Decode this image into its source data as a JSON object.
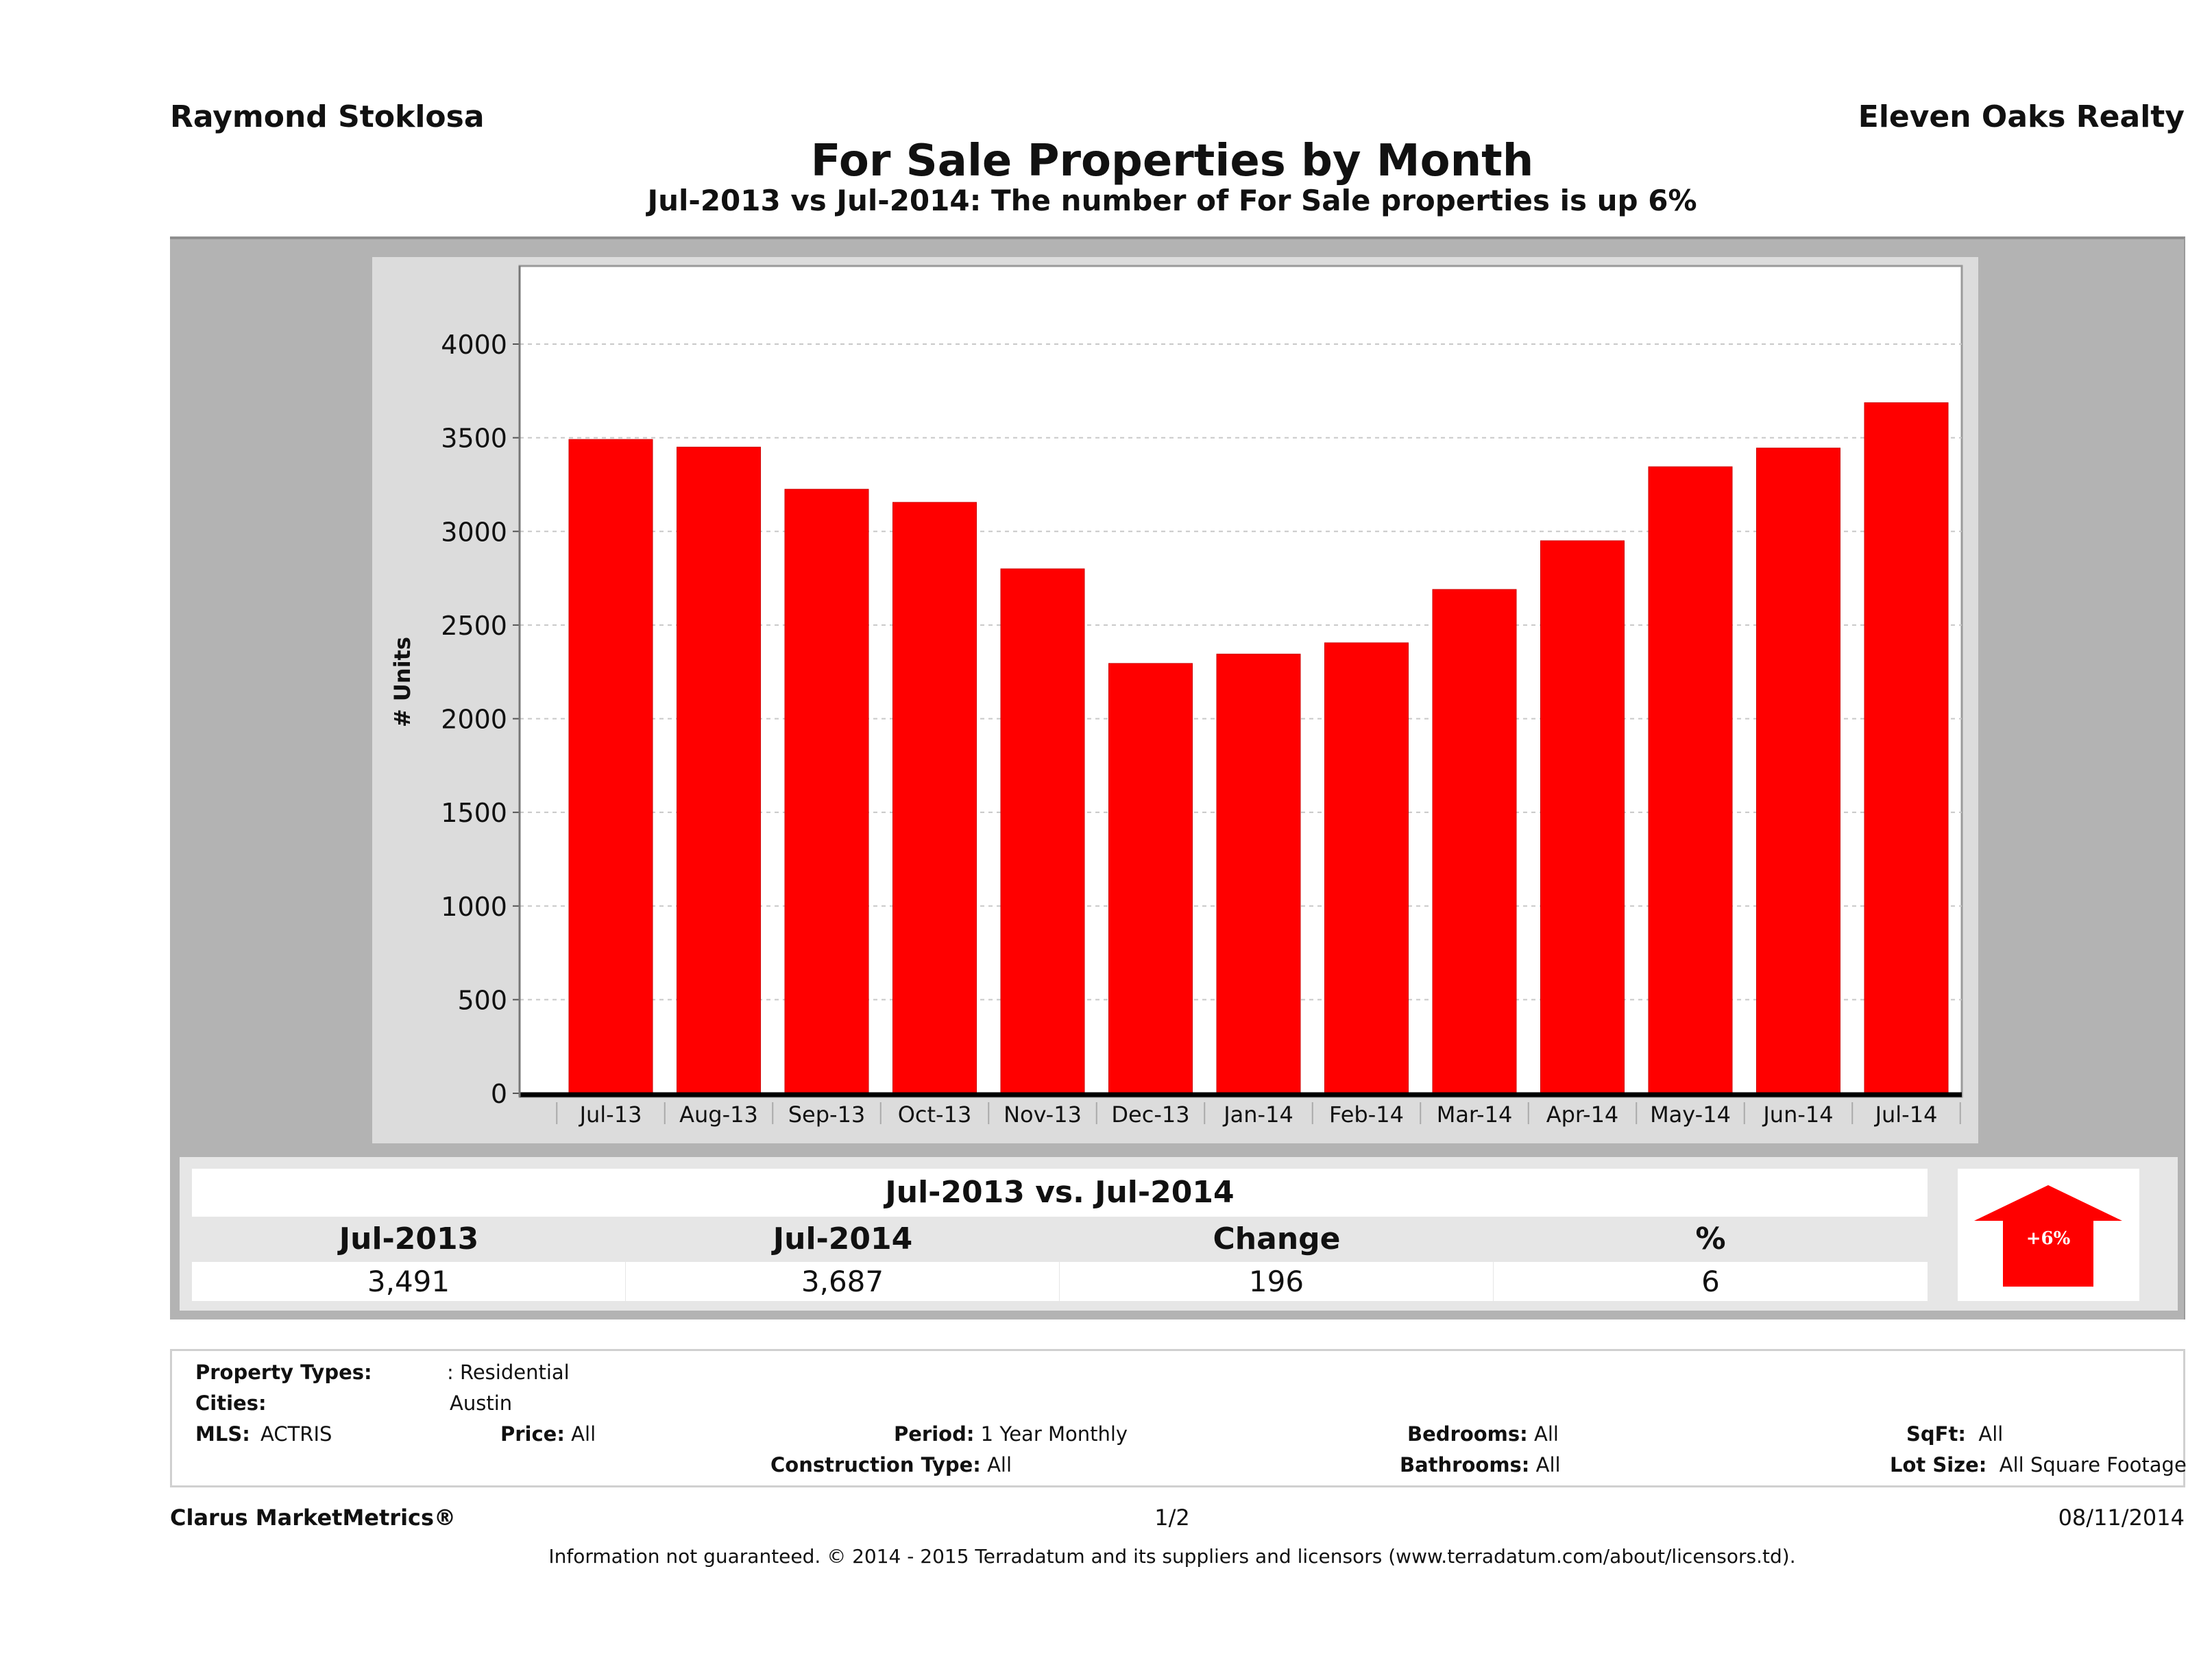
{
  "header": {
    "agent_name": "Raymond Stoklosa",
    "company_name": "Eleven Oaks Realty",
    "title": "For Sale Properties by Month",
    "subtitle": "Jul-2013 vs Jul-2014: The number of For Sale  properties is up 6%"
  },
  "colors": {
    "bar": "#ff0000",
    "panel": "#b3b3b3",
    "chart_bg": "#dcdcdc",
    "plot_bg": "#ffffff",
    "arrow": "#ff0000"
  },
  "chart_data": {
    "type": "bar",
    "title": "For Sale Properties by Month",
    "subtitle": "Jul-2013 vs Jul-2014: The number of For Sale  properties is up 6%",
    "xlabel": "",
    "ylabel": "# Units",
    "categories": [
      "Jul-13",
      "Aug-13",
      "Sep-13",
      "Oct-13",
      "Nov-13",
      "Dec-13",
      "Jan-14",
      "Feb-14",
      "Mar-14",
      "Apr-14",
      "May-14",
      "Jun-14",
      "Jul-14"
    ],
    "values": [
      3491,
      3450,
      3225,
      3155,
      2800,
      2295,
      2345,
      2405,
      2690,
      2950,
      3345,
      3445,
      3687
    ],
    "ylim": [
      0,
      4400
    ],
    "yticks": [
      0,
      500,
      1000,
      1500,
      2000,
      2500,
      3000,
      3500,
      4000
    ],
    "ytick_labels": [
      "0",
      "500",
      "1000",
      "1500",
      "2000",
      "2500",
      "3000",
      "3500",
      "4000"
    ],
    "grid": true,
    "legend": "none"
  },
  "summary": {
    "title": "Jul-2013 vs. Jul-2014",
    "headers": [
      "Jul-2013",
      "Jul-2014",
      "Change",
      "%"
    ],
    "values": [
      "3,491",
      "3,687",
      "196",
      "6"
    ],
    "badge": "+6%",
    "direction": "up"
  },
  "criteria": {
    "property_types_label": "Property Types:",
    "property_types_value": ": Residential",
    "cities_label": "Cities:",
    "cities_value": "Austin",
    "mls_label": "MLS:",
    "mls_value": "ACTRIS",
    "price_label": "Price:",
    "price_value": "All",
    "period_label": "Period:",
    "period_value": "1 Year Monthly",
    "construction_label": "Construction Type:",
    "construction_value": "All",
    "bedrooms_label": "Bedrooms:",
    "bedrooms_value": "All",
    "bathrooms_label": "Bathrooms:",
    "bathrooms_value": "All",
    "sqft_label": "SqFt:",
    "sqft_value": "All",
    "lotsize_label": "Lot Size:",
    "lotsize_value": "All Square Footage"
  },
  "footer": {
    "brand": "Clarus MarketMetrics®",
    "page": "1/2",
    "date": "08/11/2014",
    "disclaimer": "Information not guaranteed. © 2014 - 2015 Terradatum and its suppliers and licensors (www.terradatum.com/about/licensors.td)."
  }
}
